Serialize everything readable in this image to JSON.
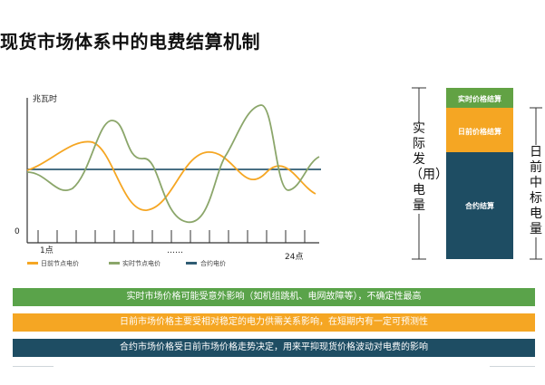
{
  "title": "现货市场体系中的电费结算机制",
  "chart": {
    "y_axis_label": "兆瓦时",
    "origin_label": "0",
    "x_start_label": "1点",
    "x_mid_label": "……",
    "x_end_label": "24点",
    "legend": [
      {
        "label": "日前节点电价",
        "color": "#f5a623"
      },
      {
        "label": "实时节点电价",
        "color": "#8ba66a"
      },
      {
        "label": "合约电价",
        "color": "#2f5c73"
      }
    ]
  },
  "stack_bar": {
    "left_label": "实际发（用）电量",
    "right_label": "日前中标电量",
    "segments": [
      {
        "label": "实时价格结算",
        "color": "#62a244"
      },
      {
        "label": "日前价格结算",
        "color": "#f5a623"
      },
      {
        "label": "合约结算",
        "color": "#1e4d63"
      }
    ]
  },
  "banners": [
    {
      "text": "实时市场价格可能受意外影响（如机组跳机、电网故障等），不确定性最高",
      "color": "#5aa34a"
    },
    {
      "text": "日前市场价格主要受相对稳定的电力供需关系影响，在短期内有一定可预测性",
      "color": "#f5a623"
    },
    {
      "text": "合约市场价格受日前市场价格走势决定，用来平抑现货价格波动对电费的影响",
      "color": "#1e4d63"
    }
  ]
}
